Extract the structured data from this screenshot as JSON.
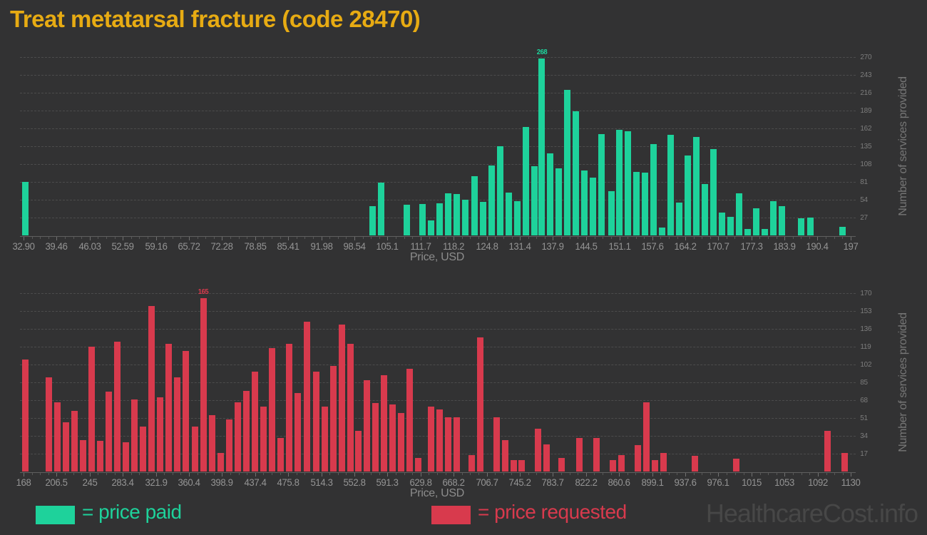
{
  "title": "Treat metatarsal fracture (code 28470)",
  "watermark": "HealthcareCost.info",
  "legend": {
    "paid": "= price paid",
    "requested": "= price requested"
  },
  "colors": {
    "background": "#323233",
    "paid": "#1ed29b",
    "requested": "#d83a4d",
    "title": "#e7ab13",
    "grid": "#4c4c4c",
    "axis": "#5f5f5f",
    "x_tick_label": "#949494",
    "y_tick_label": "#7d7d7d",
    "axis_title": "#8c8c8c",
    "watermark_color": "#474747"
  },
  "chart_data": [
    {
      "type": "bar",
      "series_name": "price paid",
      "xlabel": "Price, USD",
      "ylabel": "Number of services provided",
      "grid": true,
      "legend_position": "bottom",
      "xlim": [
        32.9,
        197
      ],
      "ylim": [
        0,
        283
      ],
      "x_ticks": [
        "32.90",
        "39.46",
        "46.03",
        "52.59",
        "59.16",
        "65.72",
        "72.28",
        "78.85",
        "85.41",
        "91.98",
        "98.54",
        "105.1",
        "111.7",
        "118.2",
        "124.8",
        "131.4",
        "137.9",
        "144.5",
        "151.1",
        "157.6",
        "164.2",
        "170.7",
        "177.3",
        "183.9",
        "190.4",
        "197"
      ],
      "y_ticks": [
        27,
        54,
        81,
        108,
        135,
        162,
        189,
        216,
        243,
        270
      ],
      "peak_label": "268",
      "bars": [
        [
          33.2,
          81
        ],
        [
          102.2,
          44
        ],
        [
          103.9,
          80
        ],
        [
          108.9,
          47
        ],
        [
          112.1,
          48
        ],
        [
          113.8,
          23
        ],
        [
          115.5,
          49
        ],
        [
          117.2,
          64
        ],
        [
          118.9,
          63
        ],
        [
          120.6,
          54
        ],
        [
          122.3,
          90
        ],
        [
          124.0,
          51
        ],
        [
          125.7,
          106
        ],
        [
          127.4,
          135
        ],
        [
          129.1,
          65
        ],
        [
          130.8,
          52
        ],
        [
          132.5,
          164
        ],
        [
          134.2,
          105
        ],
        [
          135.7,
          268
        ],
        [
          137.4,
          124
        ],
        [
          139.1,
          102
        ],
        [
          140.8,
          220
        ],
        [
          142.5,
          188
        ],
        [
          144.2,
          98
        ],
        [
          145.9,
          88
        ],
        [
          147.6,
          153
        ],
        [
          149.6,
          67
        ],
        [
          151.1,
          160
        ],
        [
          152.8,
          158
        ],
        [
          154.5,
          96
        ],
        [
          156.2,
          95
        ],
        [
          157.9,
          138
        ],
        [
          159.6,
          12
        ],
        [
          161.3,
          152
        ],
        [
          163.0,
          50
        ],
        [
          164.7,
          121
        ],
        [
          166.4,
          149
        ],
        [
          168.0,
          78
        ],
        [
          169.7,
          131
        ],
        [
          171.4,
          35
        ],
        [
          173.1,
          28
        ],
        [
          174.8,
          64
        ],
        [
          176.5,
          10
        ],
        [
          178.2,
          41
        ],
        [
          179.9,
          10
        ],
        [
          181.6,
          52
        ],
        [
          183.3,
          44
        ],
        [
          187.1,
          26
        ],
        [
          189.0,
          27
        ],
        [
          195.3,
          13
        ]
      ]
    },
    {
      "type": "bar",
      "series_name": "price requested",
      "xlabel": "Price, USD",
      "ylabel": "Number of services provided",
      "grid": true,
      "legend_position": "bottom",
      "xlim": [
        168,
        1130
      ],
      "ylim": [
        0,
        178
      ],
      "x_ticks": [
        "168",
        "206.5",
        "245",
        "283.4",
        "321.9",
        "360.4",
        "398.9",
        "437.4",
        "475.8",
        "514.3",
        "552.8",
        "591.3",
        "629.8",
        "668.2",
        "706.7",
        "745.2",
        "783.7",
        "822.2",
        "860.6",
        "899.1",
        "937.6",
        "976.1",
        "1015",
        "1053",
        "1092",
        "1130"
      ],
      "y_ticks": [
        17,
        34,
        51,
        68,
        85,
        102,
        119,
        136,
        153,
        170
      ],
      "peak_label": "165",
      "bars": [
        [
          170,
          107
        ],
        [
          197,
          90
        ],
        [
          207,
          66
        ],
        [
          217,
          47
        ],
        [
          227,
          58
        ],
        [
          237,
          30
        ],
        [
          247,
          119
        ],
        [
          257,
          29
        ],
        [
          267,
          76
        ],
        [
          277,
          124
        ],
        [
          287,
          28
        ],
        [
          297,
          69
        ],
        [
          307,
          43
        ],
        [
          317,
          158
        ],
        [
          327,
          71
        ],
        [
          337,
          122
        ],
        [
          347,
          90
        ],
        [
          357,
          115
        ],
        [
          367,
          43
        ],
        [
          377,
          165
        ],
        [
          387,
          54
        ],
        [
          397,
          18
        ],
        [
          407,
          50
        ],
        [
          417,
          66
        ],
        [
          427,
          77
        ],
        [
          437,
          95
        ],
        [
          447,
          62
        ],
        [
          457,
          118
        ],
        [
          467,
          32
        ],
        [
          477,
          122
        ],
        [
          487,
          75
        ],
        [
          498,
          143
        ],
        [
          508,
          95
        ],
        [
          518,
          62
        ],
        [
          528,
          101
        ],
        [
          538,
          140
        ],
        [
          548,
          122
        ],
        [
          557,
          39
        ],
        [
          567,
          87
        ],
        [
          577,
          65
        ],
        [
          587,
          92
        ],
        [
          597,
          64
        ],
        [
          607,
          56
        ],
        [
          617,
          98
        ],
        [
          627,
          13
        ],
        [
          642,
          62
        ],
        [
          652,
          59
        ],
        [
          662,
          52
        ],
        [
          672,
          52
        ],
        [
          689,
          16
        ],
        [
          699,
          128
        ],
        [
          718,
          52
        ],
        [
          728,
          30
        ],
        [
          738,
          11
        ],
        [
          747,
          11
        ],
        [
          766,
          41
        ],
        [
          776,
          26
        ],
        [
          794,
          13
        ],
        [
          814,
          32
        ],
        [
          834,
          32
        ],
        [
          853,
          11
        ],
        [
          863,
          16
        ],
        [
          882,
          25
        ],
        [
          892,
          66
        ],
        [
          902,
          11
        ],
        [
          912,
          18
        ],
        [
          949,
          15
        ],
        [
          997,
          12
        ],
        [
          1103,
          39
        ],
        [
          1123,
          18
        ]
      ]
    }
  ]
}
